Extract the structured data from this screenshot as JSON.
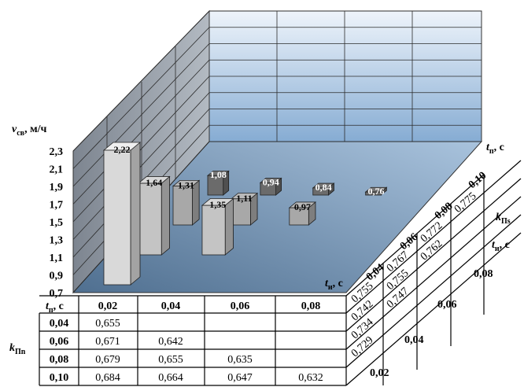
{
  "chart_data": {
    "type": "bar",
    "title": "",
    "ylabel_main": "v",
    "ylabel_sub": "св",
    "ylabel_unit": ", м/ч",
    "yticks": [
      "2,3",
      "2,1",
      "1,9",
      "1,7",
      "1,5",
      "1,3",
      "1,1",
      "0,9",
      "0,7"
    ],
    "ylim": [
      0.7,
      2.3
    ],
    "tp_axis": {
      "label": "t",
      "sub": "п",
      "unit": ", с",
      "values": [
        "0,04",
        "0,06",
        "0,08",
        "0,10"
      ]
    },
    "ti_axis": {
      "label": "t",
      "sub": "и",
      "unit": ", с",
      "values": [
        "0,02",
        "0,04",
        "0,06",
        "0,08"
      ]
    },
    "bars": [
      {
        "tp": "0,04",
        "ti": "0,02",
        "value": 2.22,
        "label": "2,22"
      },
      {
        "tp": "0,06",
        "ti": "0,02",
        "value": 1.64,
        "label": "1,64"
      },
      {
        "tp": "0,08",
        "ti": "0,02",
        "value": 1.31,
        "label": "1,31"
      },
      {
        "tp": "0,10",
        "ti": "0,02",
        "value": 1.08,
        "label": "1,08"
      },
      {
        "tp": "0,06",
        "ti": "0,04",
        "value": 1.35,
        "label": "1,35"
      },
      {
        "tp": "0,08",
        "ti": "0,04",
        "value": 1.11,
        "label": "1,11"
      },
      {
        "tp": "0,10",
        "ti": "0,04",
        "value": 0.94,
        "label": "0,94"
      },
      {
        "tp": "0,08",
        "ti": "0,06",
        "value": 0.97,
        "label": "0,97"
      },
      {
        "tp": "0,10",
        "ti": "0,06",
        "value": 0.84,
        "label": "0,84"
      },
      {
        "tp": "0,10",
        "ti": "0,08",
        "value": 0.76,
        "label": "0,76"
      }
    ],
    "bar_colors": {
      "0,04": "#d9d9d9",
      "0,06": "#c4c4c4",
      "0,08": "#a8a8a8",
      "0,10": "#6b6b6b"
    }
  },
  "table_pn": {
    "corner_label": "t",
    "corner_sub": "п",
    "corner_unit": ", с",
    "row_label": "k",
    "row_sub": "Пn",
    "col_headers": [
      "0,02",
      "0,04",
      "0,06",
      "0,08"
    ],
    "rows": [
      {
        "tp": "0,04",
        "cells": [
          "0,655",
          "",
          "",
          ""
        ]
      },
      {
        "tp": "0,06",
        "cells": [
          "0,671",
          "0,642",
          "",
          ""
        ]
      },
      {
        "tp": "0,08",
        "cells": [
          "0,679",
          "0,655",
          "0,635",
          ""
        ]
      },
      {
        "tp": "0,10",
        "cells": [
          "0,684",
          "0,664",
          "0,647",
          "0,632"
        ]
      }
    ]
  },
  "table_ps": {
    "label": "k",
    "sub": "Пs",
    "ti_label": "t",
    "ti_sub": "и",
    "ti_unit": ", с",
    "ti_values": [
      "0,08",
      "0,06",
      "0,04",
      "0,02"
    ],
    "tp_values": [
      "0,04",
      "0,06",
      "0,08",
      "0,10"
    ],
    "columns": [
      {
        "tp": "0,04",
        "cells": [
          "0,755",
          "0,742",
          "0,734",
          "0,729"
        ]
      },
      {
        "tp": "0,06",
        "cells": [
          "0,767",
          "0,755",
          "0,747",
          ""
        ]
      },
      {
        "tp": "0,08",
        "cells": [
          "0,772",
          "0,762",
          "",
          ""
        ]
      },
      {
        "tp": "0,10",
        "cells": [
          "0,775",
          "",
          "",
          ""
        ]
      }
    ]
  },
  "colors": {
    "back_wall_top": "#eef4fb",
    "back_wall_bottom": "#8fb4d9",
    "side_wall": "#9aa2ab",
    "floor": "#6f8fae",
    "grid": "#2b2b2b"
  }
}
